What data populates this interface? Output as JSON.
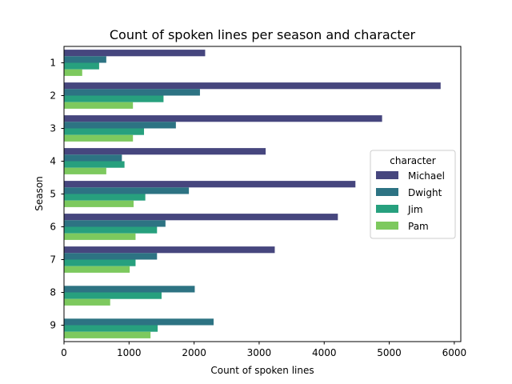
{
  "chart_data": {
    "type": "bar",
    "orientation": "horizontal",
    "title": "Count of spoken lines per season and character",
    "xlabel": "Count of spoken lines",
    "ylabel": "Season",
    "xlim": [
      0,
      6100
    ],
    "xticks": [
      0,
      1000,
      2000,
      3000,
      4000,
      5000,
      6000
    ],
    "categories": [
      "1",
      "2",
      "3",
      "4",
      "5",
      "6",
      "7",
      "8",
      "9"
    ],
    "legend": {
      "title": "character",
      "placement": "center-right"
    },
    "series": [
      {
        "name": "Michael",
        "color": "#46467e",
        "values": [
          2170,
          5790,
          4890,
          3100,
          4480,
          4210,
          3240,
          null,
          null
        ]
      },
      {
        "name": "Dwight",
        "color": "#2d7383",
        "values": [
          650,
          2090,
          1720,
          890,
          1920,
          1560,
          1430,
          2010,
          2300
        ]
      },
      {
        "name": "Jim",
        "color": "#27a07e",
        "values": [
          540,
          1530,
          1230,
          930,
          1250,
          1430,
          1100,
          1500,
          1440
        ]
      },
      {
        "name": "Pam",
        "color": "#7dc95e",
        "values": [
          280,
          1060,
          1060,
          650,
          1070,
          1100,
          1010,
          710,
          1330
        ]
      }
    ]
  }
}
